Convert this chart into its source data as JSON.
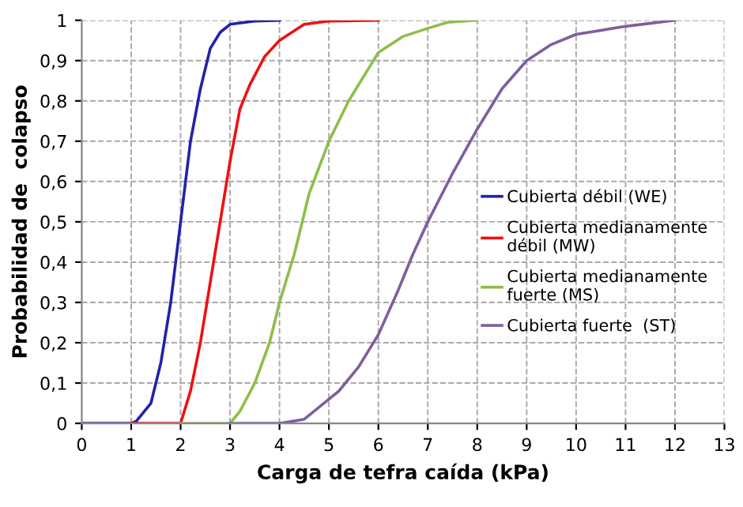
{
  "chart_data": {
    "type": "line",
    "xlabel": "Carga de tefra caída (kPa)",
    "ylabel": "Probabilidad de  colapso",
    "xlim": [
      0,
      13
    ],
    "xticks": [
      0,
      1,
      2,
      3,
      4,
      5,
      6,
      7,
      8,
      9,
      10,
      11,
      12,
      13
    ],
    "ylim": [
      0,
      1
    ],
    "yticks": [
      0,
      {
        "value": 0.1,
        "label": "0,1"
      },
      {
        "value": 0.2,
        "label": "0,2"
      },
      {
        "value": 0.3,
        "label": "0,3"
      },
      {
        "value": 0.4,
        "label": "0,4"
      },
      {
        "value": 0.5,
        "label": "0,5"
      },
      {
        "value": 0.6,
        "label": "0,6"
      },
      {
        "value": 0.7,
        "label": "0,7"
      },
      {
        "value": 0.8,
        "label": "0,8"
      },
      {
        "value": 0.9,
        "label": "0,9"
      },
      1
    ],
    "grid": true,
    "legend": "right",
    "marker": "none",
    "line_style": "solid",
    "series": [
      {
        "name": "Cubierta débil (WE)",
        "color": "#2222aa",
        "x": [
          0,
          1,
          1.1,
          1.4,
          1.6,
          1.8,
          2.0,
          2.2,
          2.4,
          2.6,
          2.8,
          3.0,
          3.5,
          4
        ],
        "values": [
          0,
          0,
          0.005,
          0.05,
          0.15,
          0.3,
          0.5,
          0.7,
          0.83,
          0.93,
          0.97,
          0.99,
          0.998,
          1
        ]
      },
      {
        "name": "Cubierta medianamente\ndébil (MW)",
        "color": "#ee1111",
        "x": [
          1,
          2,
          2.2,
          2.4,
          2.6,
          2.8,
          3.0,
          3.2,
          3.4,
          3.7,
          4,
          4.5,
          5,
          6
        ],
        "values": [
          0,
          0,
          0.08,
          0.2,
          0.35,
          0.5,
          0.65,
          0.78,
          0.84,
          0.91,
          0.95,
          0.99,
          0.998,
          1
        ]
      },
      {
        "name": "Cubierta medianamente\nfuerte (MS)",
        "color": "#8cbf4a",
        "x": [
          2,
          3,
          3.2,
          3.5,
          3.8,
          4.0,
          4.3,
          4.6,
          5,
          5.4,
          5.8,
          6,
          6.5,
          7,
          7.4,
          8
        ],
        "values": [
          0,
          0,
          0.03,
          0.1,
          0.2,
          0.3,
          0.42,
          0.57,
          0.7,
          0.8,
          0.88,
          0.92,
          0.96,
          0.98,
          0.995,
          1
        ]
      },
      {
        "name": "Cubierta fuerte  (ST)",
        "color": "#7f5f9f",
        "x": [
          3,
          4,
          4.5,
          4.8,
          5.2,
          5.6,
          6,
          6.4,
          6.7,
          7,
          7.5,
          8,
          8.5,
          9,
          9.5,
          10,
          11,
          12
        ],
        "values": [
          0,
          0,
          0.01,
          0.04,
          0.08,
          0.14,
          0.22,
          0.33,
          0.42,
          0.5,
          0.62,
          0.73,
          0.83,
          0.9,
          0.94,
          0.965,
          0.985,
          1
        ]
      }
    ]
  }
}
